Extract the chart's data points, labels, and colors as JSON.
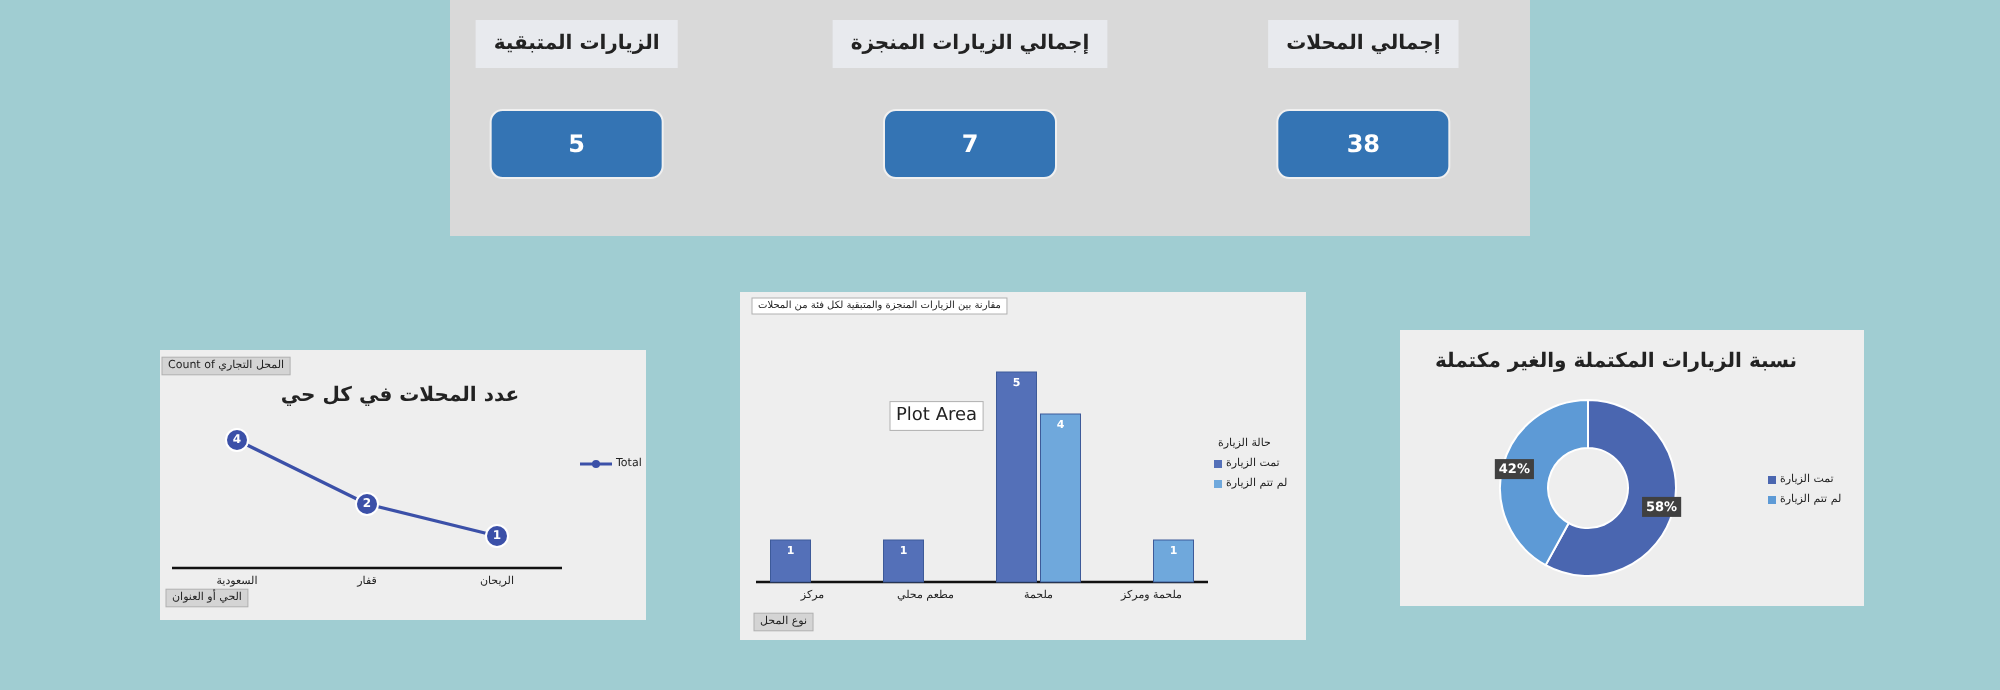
{
  "chart_data": [
    {
      "type": "other",
      "categories": [
        "الزيارات المتبقية",
        "إجمالي الزيارات المنجزة",
        "إجمالي المحلات"
      ],
      "values": [
        5,
        7,
        38
      ],
      "data_labels": true
    },
    {
      "type": "line",
      "title": "عدد المحلات في كل حي",
      "categories": [
        "السعودية",
        "قفار",
        "الريحان"
      ],
      "series": [
        {
          "name": "Total",
          "color": "#3b50a8",
          "values": [
            4,
            2,
            1
          ]
        }
      ],
      "marker": "circle",
      "legend": "right",
      "data_labels": true,
      "annotations": [
        "Count of المحل التجاري",
        "الحي أو العنوان"
      ]
    },
    {
      "type": "bar",
      "title": "مقارنة بين الزيارات المنجزة والمتبقية لكل فئة من المحلات",
      "categories": [
        "مركز",
        "مطعم محلي",
        "ملحمة",
        "ملحمة ومركز"
      ],
      "series": [
        {
          "name": "تمت الزيارة",
          "color": "#5470b8",
          "values": [
            1,
            1,
            5,
            null
          ]
        },
        {
          "name": "لم تتم الزيارة",
          "color": "#6fa8dc",
          "values": [
            null,
            null,
            4,
            1
          ]
        }
      ],
      "legend": "right",
      "legend_title": "حالة الزيارة",
      "data_labels": true,
      "annotations": [
        "Plot Area",
        "نوع المحل"
      ]
    },
    {
      "type": "donut",
      "title": "نسبة الزيارات المكتملة والغير مكتملة",
      "categories": [
        "تمت الزيارة",
        "لم تتم الزيارة"
      ],
      "values": [
        58,
        42
      ],
      "colors": [
        "#4a66b0",
        "#5d9ad6"
      ],
      "value_labels": [
        "58%",
        "42%"
      ],
      "legend": "right"
    }
  ]
}
